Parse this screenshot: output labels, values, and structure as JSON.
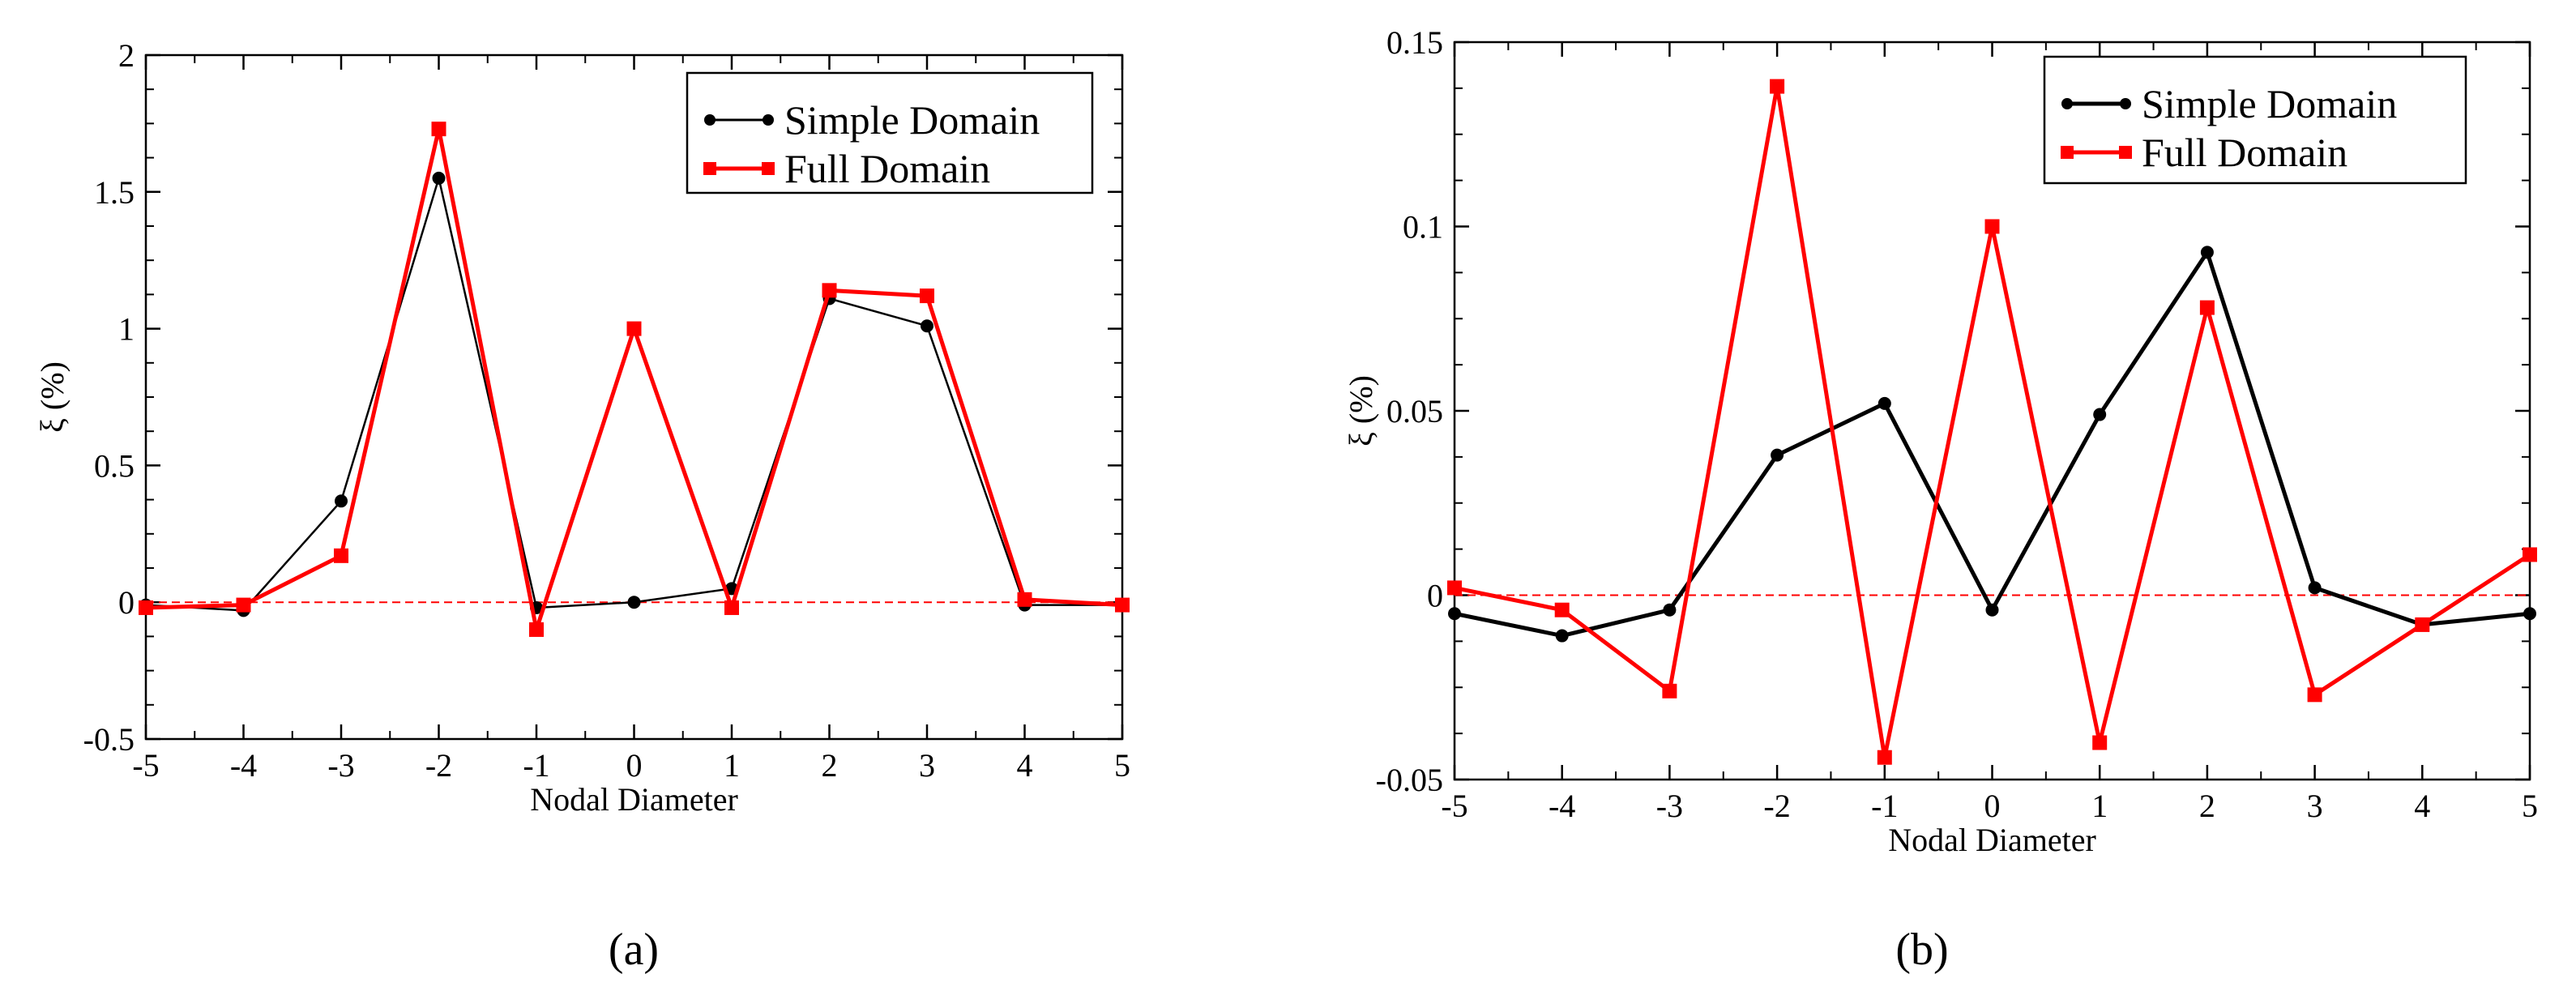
{
  "chart_data": [
    {
      "type": "line",
      "panel_label": "(a)",
      "title": "",
      "xlabel": "Nodal Diameter",
      "ylabel": "ξ (%)",
      "xlim": [
        -5,
        5
      ],
      "ylim": [
        -0.5,
        2
      ],
      "x_ticks": [
        "-5",
        "-4",
        "-3",
        "-2",
        "-1",
        "0",
        "1",
        "2",
        "3",
        "4",
        "5"
      ],
      "y_ticks": [
        "-0.5",
        "0",
        "0.5",
        "1",
        "1.5",
        "2"
      ],
      "x": [
        -5,
        -4,
        -3,
        -2,
        -1,
        0,
        1,
        2,
        3,
        4,
        5
      ],
      "series": [
        {
          "name": "Simple Domain",
          "color": "#000000",
          "marker": "circle",
          "values": [
            -0.01,
            -0.03,
            0.37,
            1.55,
            -0.02,
            0.0,
            0.05,
            1.11,
            1.01,
            -0.01,
            -0.01
          ]
        },
        {
          "name": "Full Domain",
          "color": "#ff0000",
          "marker": "square",
          "values": [
            -0.02,
            -0.01,
            0.17,
            1.73,
            -0.1,
            1.0,
            -0.02,
            1.14,
            1.12,
            0.01,
            -0.01
          ]
        }
      ],
      "reference_line": {
        "y": 0,
        "color": "#ff0000",
        "style": "dashed"
      },
      "legend_position": "top-right"
    },
    {
      "type": "line",
      "panel_label": "(b)",
      "title": "",
      "xlabel": "Nodal Diameter",
      "ylabel": "ξ (%)",
      "xlim": [
        -5,
        5
      ],
      "ylim": [
        -0.05,
        0.15
      ],
      "x_ticks": [
        "-5",
        "-4",
        "-3",
        "-2",
        "-1",
        "0",
        "1",
        "2",
        "3",
        "4",
        "5"
      ],
      "y_ticks": [
        "-0.05",
        "0",
        "0.05",
        "0.1",
        "0.15"
      ],
      "x": [
        -5,
        -4,
        -3,
        -2,
        -1,
        0,
        1,
        2,
        3,
        4,
        5
      ],
      "series": [
        {
          "name": "Simple Domain",
          "color": "#000000",
          "marker": "circle",
          "values": [
            -0.005,
            -0.011,
            -0.004,
            0.038,
            0.052,
            -0.004,
            0.049,
            0.093,
            0.002,
            -0.008,
            -0.005
          ]
        },
        {
          "name": "Full Domain",
          "color": "#ff0000",
          "marker": "square",
          "values": [
            0.002,
            -0.004,
            -0.026,
            0.138,
            -0.044,
            0.1,
            -0.04,
            0.078,
            -0.027,
            -0.008,
            0.011
          ]
        }
      ],
      "reference_line": {
        "y": 0,
        "color": "#ff0000",
        "style": "dashed"
      },
      "legend_position": "top-right"
    }
  ]
}
